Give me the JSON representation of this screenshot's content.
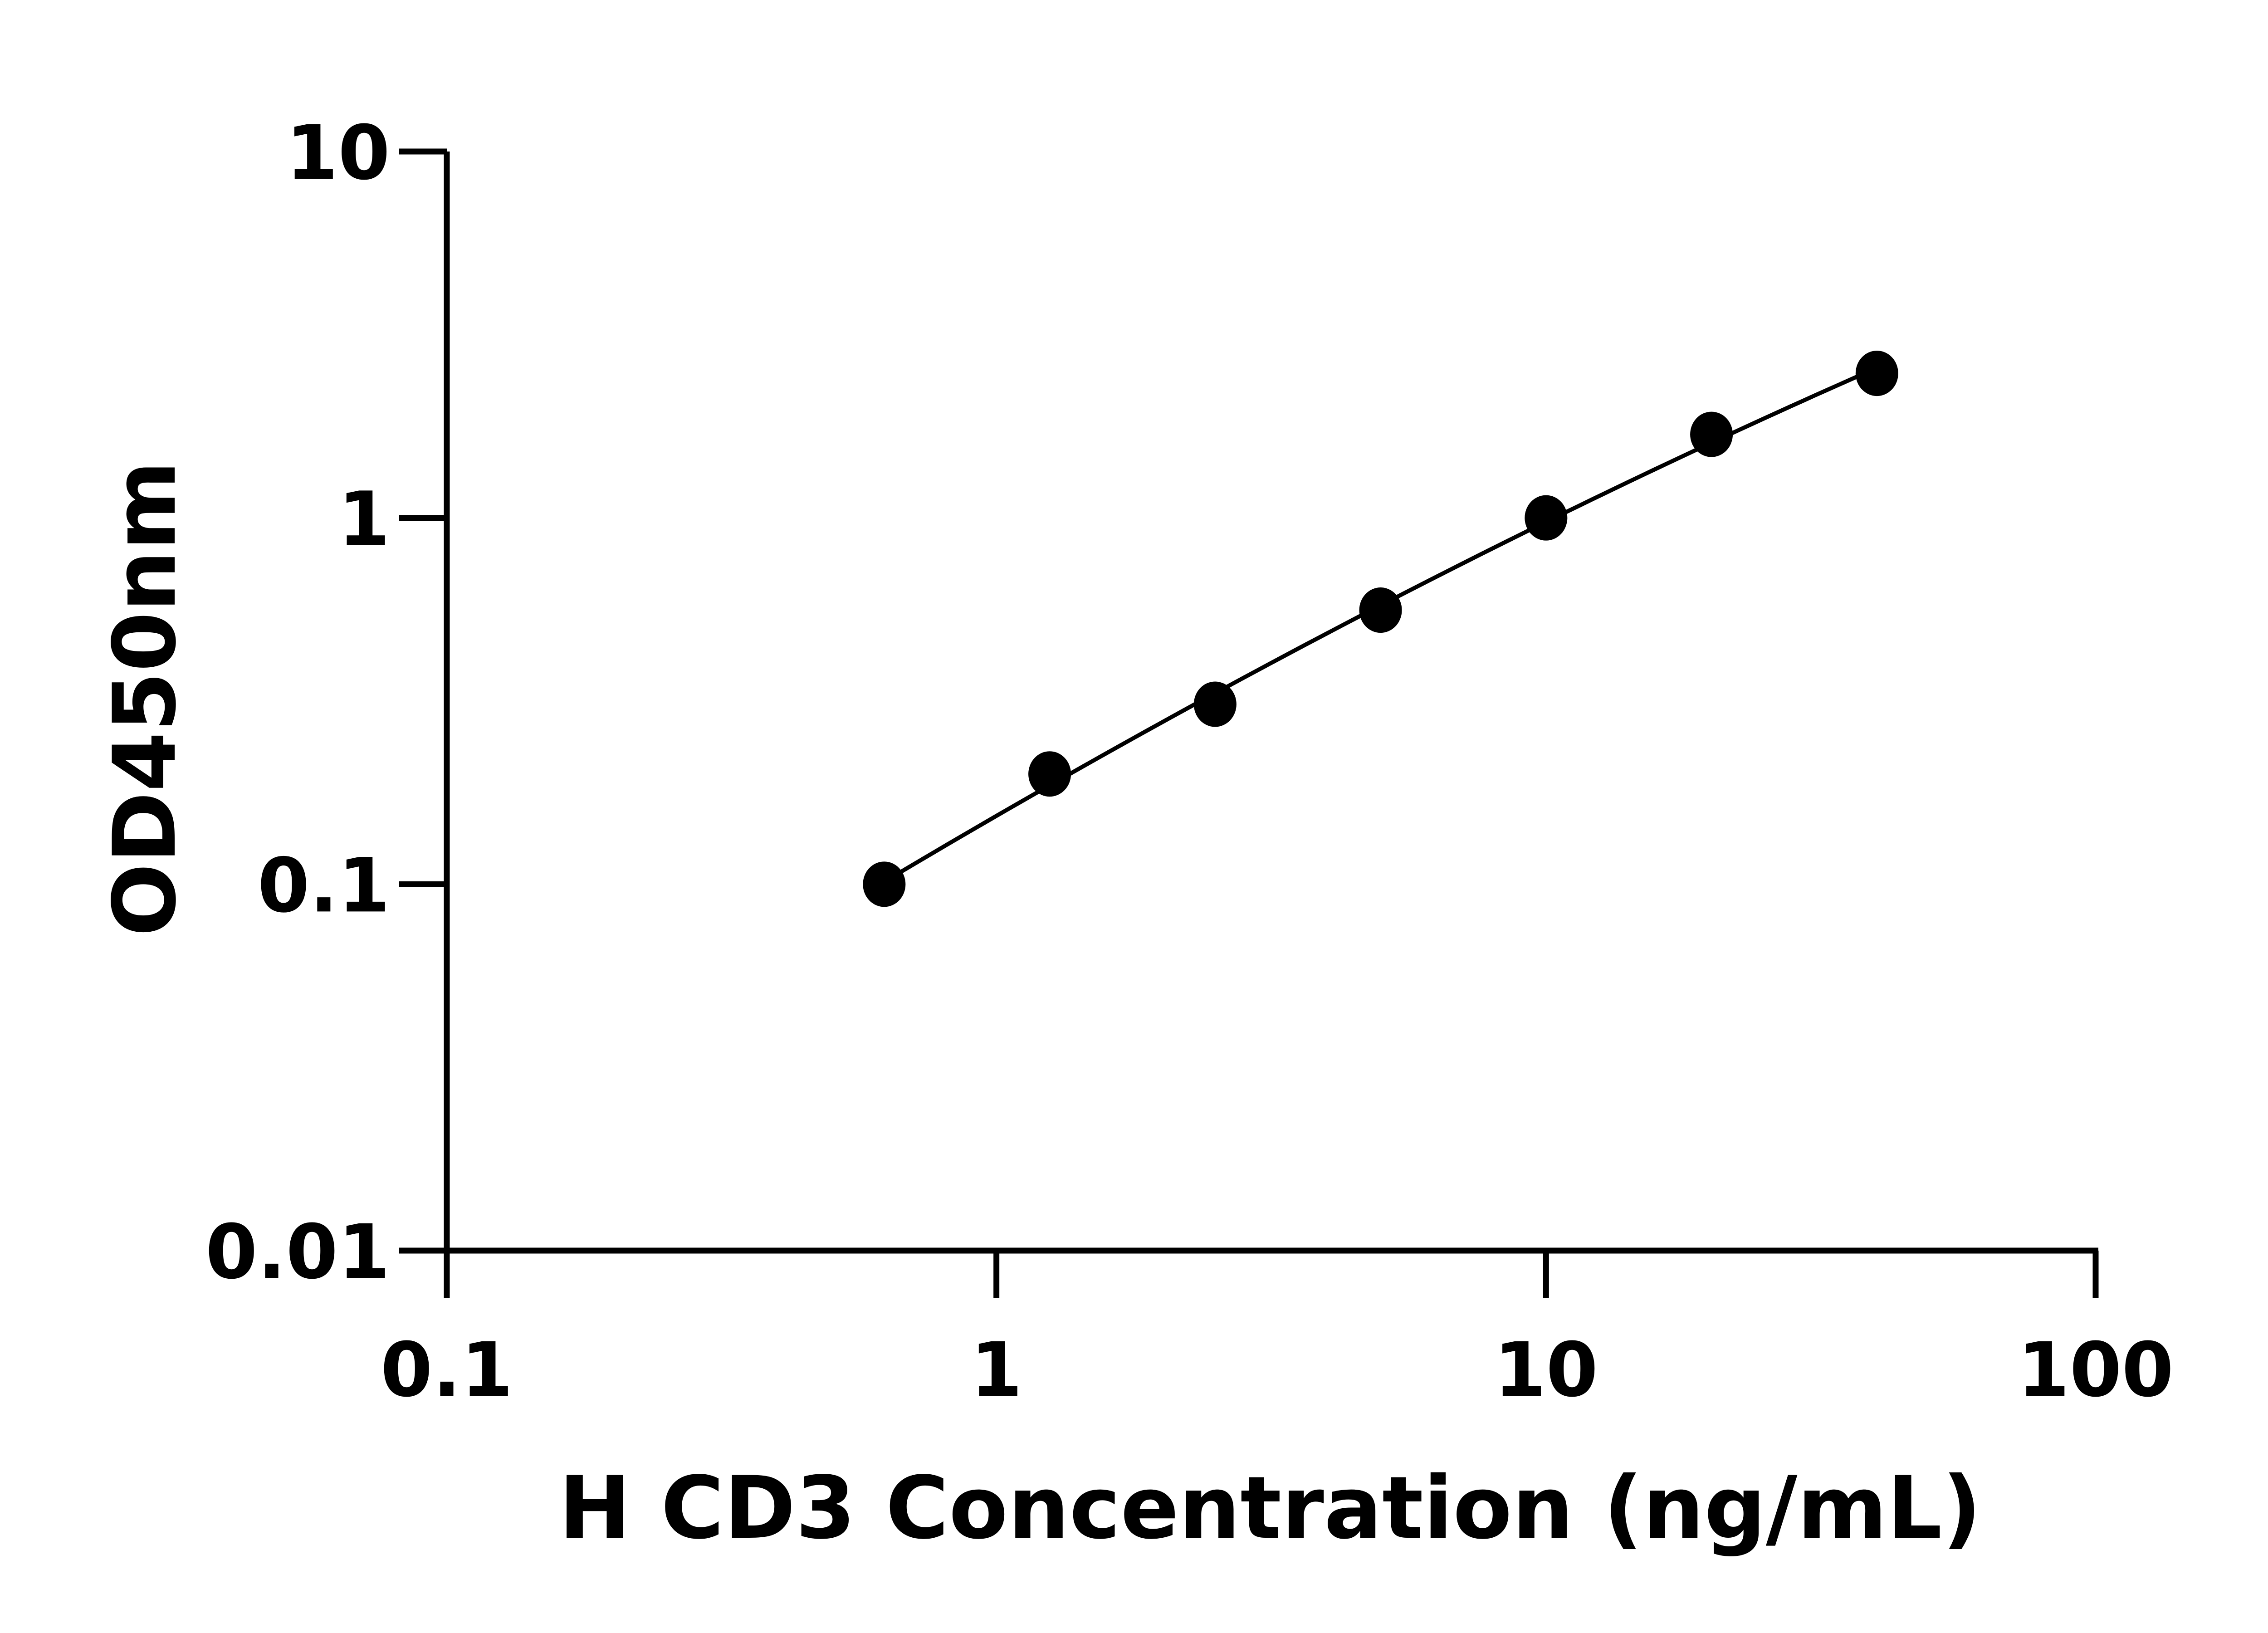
{
  "chart_data": {
    "type": "scatter",
    "xlabel": "H CD3 Concentration (ng/mL)",
    "ylabel": "OD450nm",
    "xscale": "log",
    "yscale": "log",
    "xlim": [
      0.1,
      100
    ],
    "ylim": [
      0.01,
      10
    ],
    "x_ticks": [
      0.1,
      1,
      10,
      100
    ],
    "x_tick_labels": [
      "0.1",
      "1",
      "10",
      "100"
    ],
    "y_ticks": [
      0.01,
      0.1,
      1,
      10
    ],
    "y_tick_labels": [
      "0.01",
      "0.1",
      "1",
      "10"
    ],
    "grid": false,
    "series": [
      {
        "x": [
          0.625,
          1.25,
          2.5,
          5,
          10,
          20,
          40
        ],
        "y": [
          0.1,
          0.2,
          0.31,
          0.56,
          1.0,
          1.69,
          2.48
        ],
        "marker": "filled-circle",
        "fit_line": true
      }
    ],
    "colors": {
      "points": "#000000",
      "line": "#000000",
      "axes": "#000000"
    }
  }
}
